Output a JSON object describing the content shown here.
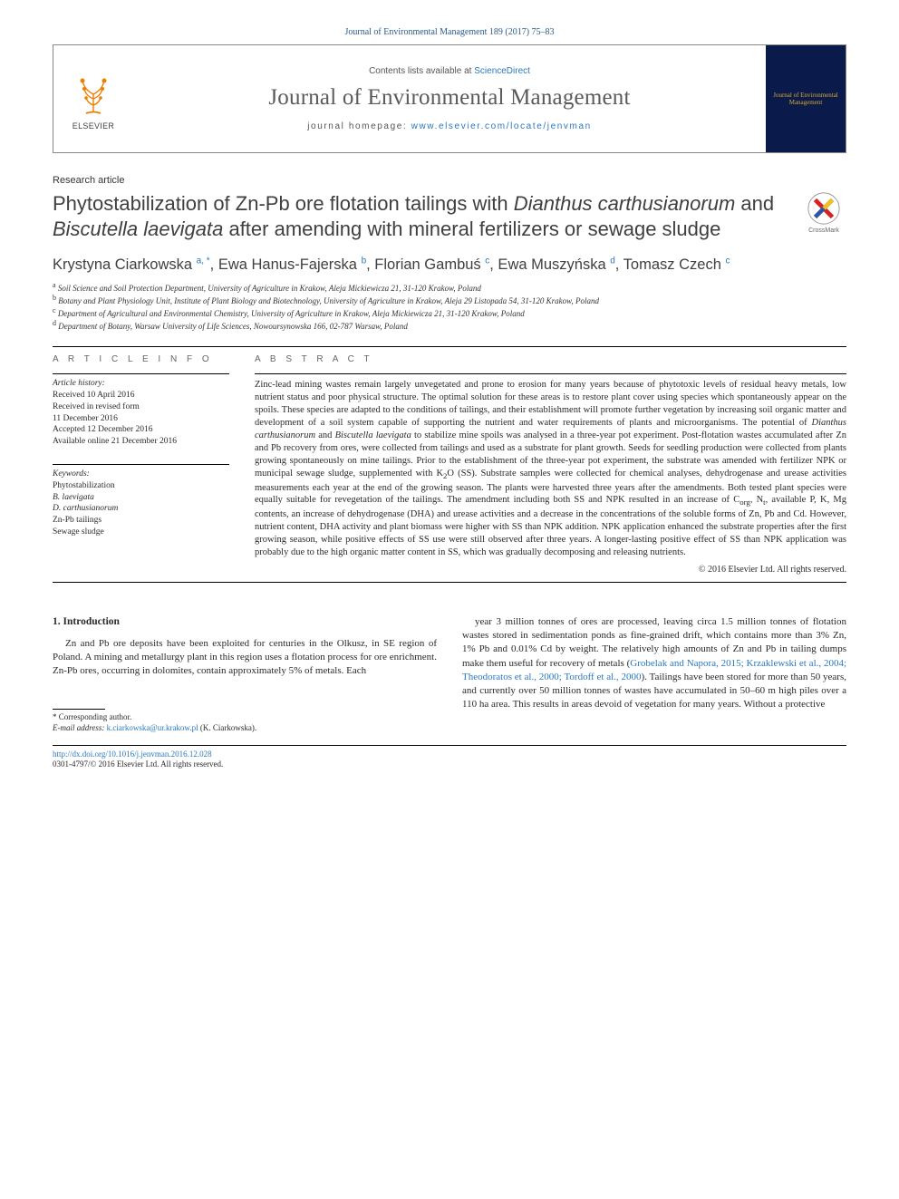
{
  "journal_ref": "Journal of Environmental Management 189 (2017) 75–83",
  "header": {
    "contents_prefix": "Contents lists available at ",
    "contents_link": "ScienceDirect",
    "journal_name": "Journal of Environmental Management",
    "homepage_prefix": "journal homepage: ",
    "homepage_link": "www.elsevier.com/locate/jenvman",
    "elsevier_label": "ELSEVIER",
    "cover_text": "Journal of Environmental Management"
  },
  "article_type": "Research article",
  "crossmark_label": "CrossMark",
  "title_html": "Phytostabilization of Zn-Pb ore flotation tailings with <em>Dianthus carthusianorum</em> and <em>Biscutella laevigata</em> after amending with mineral fertilizers or sewage sludge",
  "authors_html": "Krystyna Ciarkowska <sup>a, *</sup>, Ewa Hanus-Fajerska <sup>b</sup>, Florian Gambuś <sup>c</sup>, Ewa Muszyńska <sup>d</sup>, Tomasz Czech <sup>c</sup>",
  "affiliations": [
    {
      "sup": "a",
      "text": "Soil Science and Soil Protection Department, University of Agriculture in Krakow, Aleja Mickiewicza 21, 31-120 Krakow, Poland"
    },
    {
      "sup": "b",
      "text": "Botany and Plant Physiology Unit, Institute of Plant Biology and Biotechnology, University of Agriculture in Krakow, Aleja 29 Listopada 54, 31-120 Krakow, Poland"
    },
    {
      "sup": "c",
      "text": "Department of Agricultural and Environmental Chemistry, University of Agriculture in Krakow, Aleja Mickiewicza 21, 31-120 Krakow, Poland"
    },
    {
      "sup": "d",
      "text": "Department of Botany, Warsaw University of Life Sciences, Nowoursynowska 166, 02-787 Warsaw, Poland"
    }
  ],
  "info_heading": "A R T I C L E  I N F O",
  "history": {
    "label": "Article history:",
    "received": "Received 10 April 2016",
    "revised_l1": "Received in revised form",
    "revised_l2": "11 December 2016",
    "accepted": "Accepted 12 December 2016",
    "online": "Available online 21 December 2016"
  },
  "keywords": {
    "label": "Keywords:",
    "items": [
      "Phytostabilization",
      "B. laevigata",
      "D. carthusianorum",
      "Zn-Pb tailings",
      "Sewage sludge"
    ]
  },
  "abstract_heading": "A B S T R A C T",
  "abstract_html": "Zinc-lead mining wastes remain largely unvegetated and prone to erosion for many years because of phytotoxic levels of residual heavy metals, low nutrient status and poor physical structure. The optimal solution for these areas is to restore plant cover using species which spontaneously appear on the spoils. These species are adapted to the conditions of tailings, and their establishment will promote further vegetation by increasing soil organic matter and development of a soil system capable of supporting the nutrient and water requirements of plants and microorganisms. The potential of <em>Dianthus carthusianorum</em> and <em>Biscutella laevigata</em> to stabilize mine spoils was analysed in a three-year pot experiment. Post-flotation wastes accumulated after Zn and Pb recovery from ores, were collected from tailings and used as a substrate for plant growth. Seeds for seedling production were collected from plants growing spontaneously on mine tailings. Prior to the establishment of the three-year pot experiment, the substrate was amended with fertilizer NPK or municipal sewage sludge, supplemented with K<sub>2</sub>O (SS). Substrate samples were collected for chemical analyses, dehydrogenase and urease activities measurements each year at the end of the growing season. The plants were harvested three years after the amendments. Both tested plant species were equally suitable for revegetation of the tailings. The amendment including both SS and NPK resulted in an increase of C<sub>org</sub>, N<sub>t</sub>, available P, K, Mg contents, an increase of dehydrogenase (DHA) and urease activities and a decrease in the concentrations of the soluble forms of Zn, Pb and Cd. However, nutrient content, DHA activity and plant biomass were higher with SS than NPK addition. NPK application enhanced the substrate properties after the first growing season, while positive effects of SS use were still observed after three years. A longer-lasting positive effect of SS than NPK application was probably due to the high organic matter content in SS, which was gradually decomposing and releasing nutrients.",
  "copyright": "© 2016 Elsevier Ltd. All rights reserved.",
  "section_heading": "1. Introduction",
  "intro_col1": "Zn and Pb ore deposits have been exploited for centuries in the Olkusz, in SE region of Poland. A mining and metallurgy plant in this region uses a flotation process for ore enrichment. Zn-Pb ores, occurring in dolomites, contain approximately 5% of metals. Each",
  "intro_col2_pre": "year 3 million tonnes of ores are processed, leaving circa 1.5 million tonnes of flotation wastes stored in sedimentation ponds as fine-grained drift, which contains more than 3% Zn, 1% Pb and 0.01% Cd by weight. The relatively high amounts of Zn and Pb in tailing dumps make them useful for recovery of metals (",
  "intro_col2_cite": "Grobelak and Napora, 2015; Krzaklewski et al., 2004; Theodoratos et al., 2000; Tordoff et al., 2000",
  "intro_col2_post": "). Tailings have been stored for more than 50 years, and currently over 50 million tonnes of wastes have accumulated in 50–60 m high piles over a 110 ha area. This results in areas devoid of vegetation for many years. Without a protective",
  "corresponding": {
    "label": "* Corresponding author.",
    "email_label": "E-mail address:",
    "email": "k.ciarkowska@ur.krakow.pl",
    "name": "(K. Ciarkowska)."
  },
  "footer": {
    "doi": "http://dx.doi.org/10.1016/j.jenvman.2016.12.028",
    "issn_line": "0301-4797/© 2016 Elsevier Ltd. All rights reserved."
  },
  "colors": {
    "link": "#2a78c0",
    "elsevier_orange": "#ee7d00",
    "cover_bg": "#0a1a4a",
    "cover_text": "#d8a830"
  }
}
